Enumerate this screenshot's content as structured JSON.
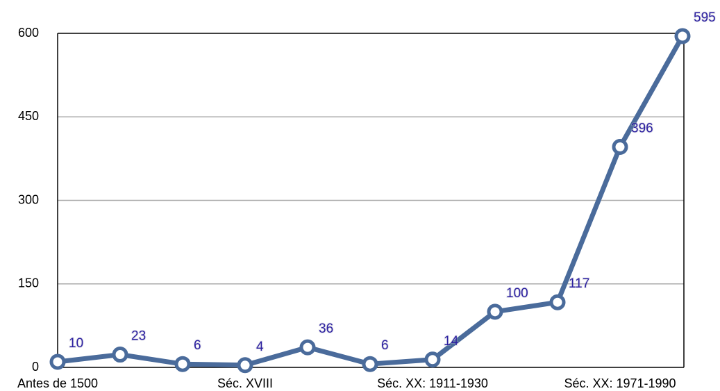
{
  "chart_data": {
    "type": "line",
    "categories": [
      "Antes de 1500",
      null,
      null,
      "Séc. XVIII",
      null,
      null,
      "Séc. XX: 1911-1930",
      null,
      null,
      "Séc. XX: 1971-1990",
      null
    ],
    "series": [
      {
        "color": "#4a6b9b",
        "values": [
          10,
          23,
          6,
          4,
          36,
          6,
          14,
          100,
          117,
          396,
          595
        ]
      }
    ],
    "ylim": [
      0,
      600
    ],
    "yticks": [
      0,
      150,
      300,
      450,
      600
    ],
    "grid": true
  }
}
